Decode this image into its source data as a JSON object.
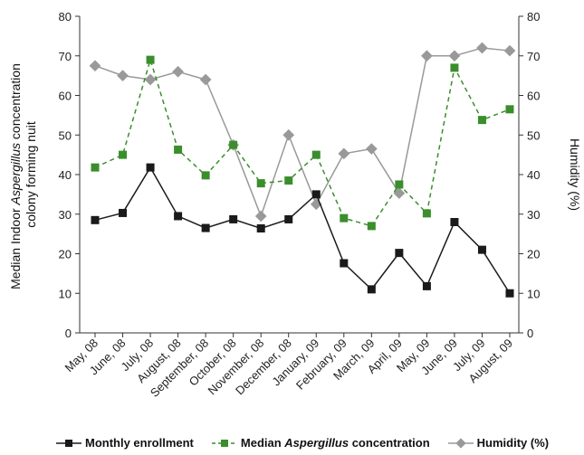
{
  "chart_data": {
    "type": "line",
    "categories": [
      "May, 08",
      "June, 08",
      "July, 08",
      "August, 08",
      "September, 08",
      "October, 08",
      "November, 08",
      "December, 08",
      "January, 09",
      "February, 09",
      "March, 09",
      "April, 09",
      "May, 09",
      "June, 09",
      "July, 09",
      "August, 09"
    ],
    "left_axis": {
      "label_line1": "Median Indoor ",
      "label_italic": "Aspergillus",
      "label_line1_rest": " concentration",
      "label_line2": "colony forming nuit",
      "ylim": [
        0,
        80
      ],
      "ticks": [
        "0",
        "10",
        "20",
        "30",
        "40",
        "50",
        "60",
        "70",
        "80"
      ]
    },
    "right_axis": {
      "label": "Humidity (%)",
      "ylim": [
        0,
        80
      ],
      "ticks": [
        "0",
        "10",
        "20",
        "30",
        "40",
        "50",
        "60",
        "70",
        "80"
      ]
    },
    "series": [
      {
        "name": "Monthly enrollment",
        "color": "#1a1a1a",
        "style": "solid",
        "marker": "square",
        "axis": "left",
        "values": [
          28.5,
          30.3,
          41.8,
          29.5,
          26.5,
          28.7,
          26.4,
          28.7,
          35,
          17.6,
          11,
          20.2,
          11.8,
          28,
          21,
          10
        ]
      },
      {
        "name": "Median Aspergillus concentration",
        "legend_prefix": "Median ",
        "legend_italic": "Aspergillus",
        "legend_suffix": " concentration",
        "color": "#3a8e2c",
        "style": "dashed",
        "marker": "square",
        "axis": "left",
        "values": [
          41.8,
          45,
          69,
          46.3,
          39.8,
          47.5,
          37.8,
          38.5,
          45,
          29,
          27,
          37.5,
          30.2,
          67,
          53.8,
          56.5
        ]
      },
      {
        "name": "Humidity (%)",
        "color": "#999999",
        "style": "solid",
        "marker": "diamond",
        "axis": "right",
        "values": [
          67.5,
          65,
          64,
          66,
          64,
          47.5,
          29.5,
          50,
          32.5,
          45.3,
          46.5,
          35.3,
          70,
          70,
          72,
          71.3
        ]
      }
    ]
  }
}
